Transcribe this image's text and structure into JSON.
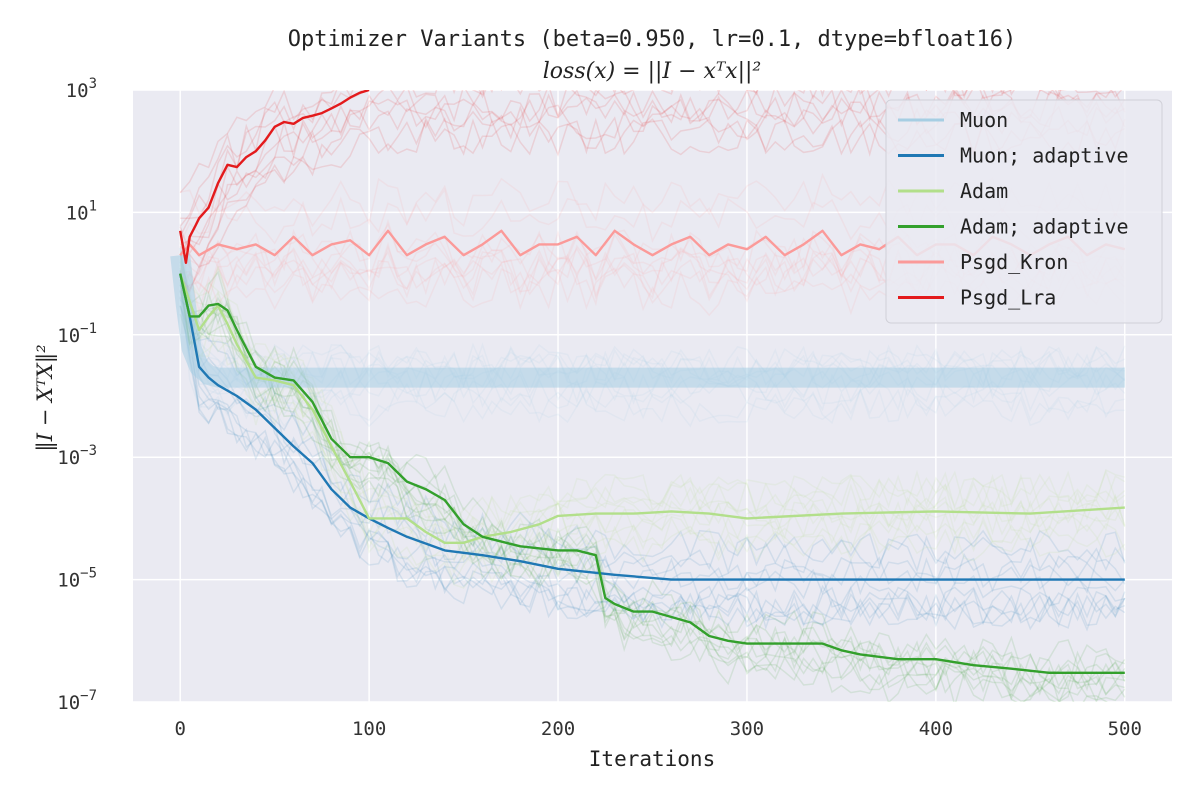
{
  "chart_data": {
    "type": "line",
    "title": "Optimizer Variants (beta=0.950, lr=0.1, dtype=bfloat16)",
    "subtitle": "loss(x) = ||I − xᵀx||²",
    "xlabel": "Iterations",
    "ylabel": "‖I − XᵀX‖²",
    "xlim": [
      -25,
      525
    ],
    "ylim": [
      1e-07,
      1000
    ],
    "yscale": "log",
    "xticks": [
      0,
      100,
      200,
      300,
      400,
      500
    ],
    "xtick_labels": [
      "0",
      "100",
      "200",
      "300",
      "400",
      "500"
    ],
    "yticks": [
      1e-07,
      1e-05,
      0.001,
      0.1,
      10,
      1000
    ],
    "ytick_labels": [
      {
        "base": "10",
        "exp": "−7"
      },
      {
        "base": "10",
        "exp": "−5"
      },
      {
        "base": "10",
        "exp": "−3"
      },
      {
        "base": "10",
        "exp": "−1"
      },
      {
        "base": "10",
        "exp": "1"
      },
      {
        "base": "10",
        "exp": "3"
      }
    ],
    "grid": true,
    "legend_position": "top-right",
    "series": [
      {
        "name": "Muon",
        "color": "#a6cee3",
        "x": [
          0,
          3,
          6,
          10,
          15,
          20,
          30,
          50,
          100,
          200,
          300,
          400,
          500
        ],
        "y": [
          2.0,
          0.3,
          0.06,
          0.03,
          0.022,
          0.02,
          0.02,
          0.02,
          0.02,
          0.02,
          0.02,
          0.02,
          0.02
        ]
      },
      {
        "name": "Muon; adaptive",
        "color": "#1f78b4",
        "x": [
          0,
          5,
          10,
          15,
          20,
          30,
          40,
          50,
          60,
          70,
          80,
          90,
          100,
          110,
          120,
          140,
          160,
          180,
          200,
          230,
          260,
          300,
          400,
          500
        ],
        "y": [
          1.0,
          0.2,
          0.03,
          0.02,
          0.015,
          0.01,
          0.006,
          0.003,
          0.0015,
          0.0008,
          0.0003,
          0.00015,
          0.0001,
          7e-05,
          5e-05,
          3e-05,
          2.5e-05,
          2e-05,
          1.5e-05,
          1.2e-05,
          1e-05,
          1e-05,
          1e-05,
          1e-05
        ]
      },
      {
        "name": "Adam",
        "color": "#b2df8a",
        "x": [
          0,
          5,
          10,
          15,
          20,
          25,
          30,
          40,
          50,
          60,
          70,
          80,
          90,
          100,
          110,
          120,
          130,
          140,
          150,
          160,
          175,
          190,
          200,
          220,
          240,
          260,
          280,
          300,
          350,
          400,
          450,
          500
        ],
        "y": [
          1.0,
          0.35,
          0.12,
          0.2,
          0.3,
          0.15,
          0.07,
          0.02,
          0.018,
          0.015,
          0.006,
          0.0015,
          0.0004,
          0.0001,
          0.0001,
          0.0001,
          6e-05,
          4e-05,
          4e-05,
          5e-05,
          6e-05,
          8e-05,
          0.00011,
          0.00012,
          0.00012,
          0.00013,
          0.00012,
          0.0001,
          0.00012,
          0.00013,
          0.00012,
          0.00015
        ]
      },
      {
        "name": "Adam; adaptive",
        "color": "#33a02c",
        "x": [
          0,
          5,
          10,
          15,
          20,
          25,
          30,
          40,
          50,
          60,
          70,
          80,
          90,
          100,
          110,
          120,
          130,
          140,
          150,
          160,
          180,
          200,
          210,
          220,
          225,
          230,
          240,
          250,
          270,
          280,
          290,
          300,
          340,
          350,
          360,
          380,
          400,
          420,
          440,
          460,
          480,
          500
        ],
        "y": [
          1.0,
          0.2,
          0.2,
          0.3,
          0.32,
          0.25,
          0.12,
          0.03,
          0.02,
          0.018,
          0.008,
          0.002,
          0.001,
          0.001,
          0.0008,
          0.0004,
          0.0003,
          0.0002,
          8e-05,
          5e-05,
          3.5e-05,
          3e-05,
          3e-05,
          2.5e-05,
          5e-06,
          4e-06,
          3e-06,
          3e-06,
          2e-06,
          1.2e-06,
          1e-06,
          9e-07,
          9e-07,
          7e-07,
          6e-07,
          5e-07,
          5e-07,
          4e-07,
          3.5e-07,
          3e-07,
          3e-07,
          3e-07
        ]
      },
      {
        "name": "Psgd_Kron",
        "color": "#fb9a99",
        "x": [
          0,
          5,
          10,
          20,
          30,
          40,
          50,
          60,
          70,
          80,
          90,
          100,
          110,
          120,
          130,
          140,
          150,
          160,
          170,
          180,
          190,
          200,
          210,
          220,
          230,
          240,
          250,
          260,
          270,
          280,
          290,
          300,
          310,
          320,
          330,
          340,
          350,
          360,
          370,
          380,
          390,
          400,
          410,
          420,
          430,
          440,
          450,
          460,
          470,
          480,
          490,
          500
        ],
        "y": [
          2.0,
          3.0,
          2.0,
          3.0,
          2.5,
          3.0,
          2.0,
          4.0,
          2.0,
          3.0,
          3.5,
          2.0,
          5.0,
          2.0,
          3.0,
          4.0,
          2.0,
          3.0,
          5.0,
          2.0,
          3.0,
          3.0,
          4.0,
          2.0,
          5.0,
          3.0,
          2.0,
          3.0,
          4.0,
          2.0,
          3.0,
          2.5,
          4.0,
          2.0,
          3.0,
          5.0,
          2.0,
          3.0,
          2.5,
          4.0,
          2.0,
          3.0,
          3.0,
          2.0,
          4.0,
          3.0,
          2.0,
          3.0,
          4.0,
          2.0,
          3.0,
          2.5
        ]
      },
      {
        "name": "Psgd_Lra",
        "color": "#e31a1c",
        "x": [
          0,
          3,
          5,
          8,
          10,
          15,
          20,
          25,
          30,
          35,
          40,
          45,
          50,
          55,
          60,
          65,
          70,
          75,
          80,
          85,
          90,
          95,
          100
        ],
        "y": [
          5.0,
          1.5,
          4.0,
          6.0,
          8.0,
          12.0,
          30.0,
          60.0,
          55.0,
          80.0,
          100.0,
          150.0,
          250.0,
          300.0,
          280.0,
          350.0,
          380.0,
          420.0,
          500.0,
          600.0,
          750.0,
          900.0,
          1000.0
        ]
      }
    ]
  }
}
